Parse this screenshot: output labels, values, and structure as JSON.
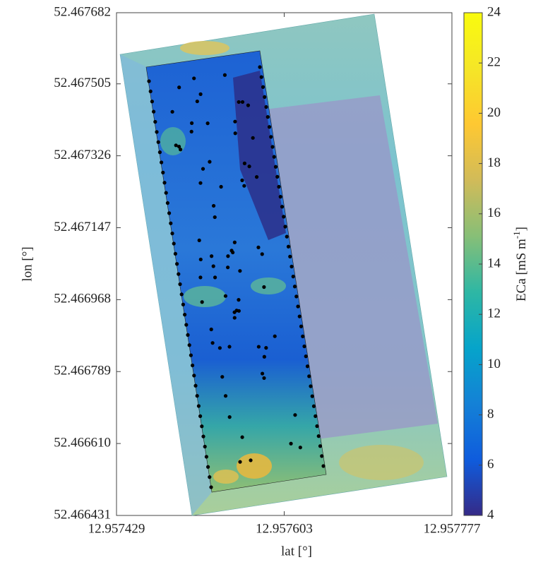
{
  "chart_data": {
    "type": "contour",
    "x_label": "lat [°]",
    "y_label": "lon [°]",
    "xlim": [
      12.957429,
      12.957777
    ],
    "xticks": [
      12.957429,
      12.957603,
      12.957777
    ],
    "ylim": [
      52.466431,
      52.467682
    ],
    "yticks": [
      52.466431,
      {
        "value": 52.46661,
        "label": "52.466610"
      },
      52.466789,
      52.466968,
      52.467147,
      52.467326,
      52.467505,
      52.467682
    ],
    "colorbar": {
      "label_parts": [
        "ECa [mS m",
        "-1",
        "]"
      ],
      "lim": [
        4,
        24
      ],
      "ticks": [
        4,
        6,
        8,
        10,
        12,
        14,
        16,
        18,
        20,
        22,
        24
      ],
      "colormap": [
        "#352a87",
        "#0f5cdd",
        "#1481d6",
        "#06a4ca",
        "#2eb7a4",
        "#87bf77",
        "#d1bb59",
        "#fec832",
        "#f5e627",
        "#f9fb0e"
      ]
    }
  }
}
